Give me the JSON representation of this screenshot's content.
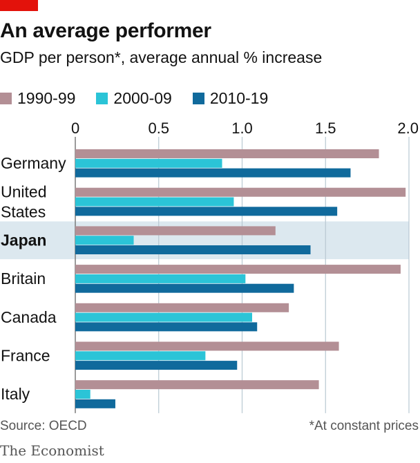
{
  "header": {
    "title": "An average performer",
    "subtitle": "GDP per person*, average annual % increase"
  },
  "colors": {
    "accent": "#e3120b",
    "series_1990": "#b38f95",
    "series_2000": "#2bc4d7",
    "series_2010": "#106a9c",
    "highlight": "#dce8ef",
    "gridline": "#b8c8d2"
  },
  "chart_data": {
    "type": "bar",
    "orientation": "horizontal",
    "title": "An average performer",
    "subtitle": "GDP per person*, average annual % increase",
    "categories": [
      "Germany",
      "United States",
      "Japan",
      "Britain",
      "Canada",
      "France",
      "Italy"
    ],
    "category_lines": [
      [
        "Germany"
      ],
      [
        "United",
        "States"
      ],
      [
        "Japan"
      ],
      [
        "Britain"
      ],
      [
        "Canada"
      ],
      [
        "France"
      ],
      [
        "Italy"
      ]
    ],
    "highlight_category": "Japan",
    "series": [
      {
        "name": "1990-99",
        "color": "#b38f95",
        "values": [
          1.82,
          1.98,
          1.2,
          1.95,
          1.28,
          1.58,
          1.46
        ]
      },
      {
        "name": "2000-09",
        "color": "#2bc4d7",
        "values": [
          0.88,
          0.95,
          0.35,
          1.02,
          1.06,
          0.78,
          0.09
        ]
      },
      {
        "name": "2010-19",
        "color": "#106a9c",
        "values": [
          1.65,
          1.57,
          1.41,
          1.31,
          1.09,
          0.97,
          0.24
        ]
      }
    ],
    "xlim": [
      0,
      2.0
    ],
    "xticks": [
      0,
      0.5,
      1.0,
      1.5,
      2.0
    ],
    "xtick_labels": [
      "0",
      "0.5",
      "1.0",
      "1.5",
      "2.0"
    ],
    "grid": true,
    "legend_position": "top-left"
  },
  "footer": {
    "source": "Source: OECD",
    "footnote": "*At constant prices",
    "brand": "The Economist"
  }
}
